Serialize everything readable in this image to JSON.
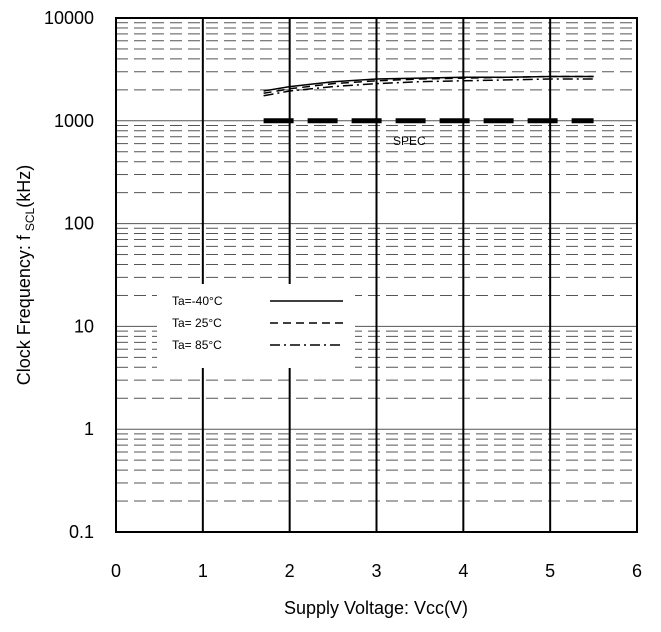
{
  "chart_data": {
    "type": "line",
    "title": "",
    "xlabel": "Supply Voltage: Vcc(V)",
    "ylabel": "Clock Frequency: f",
    "ylabel_sub": "SCL",
    "ylabel_unit": "(kHz)",
    "xlim": [
      0,
      6
    ],
    "ylim": [
      0.1,
      10000
    ],
    "yscale": "log",
    "grid": true,
    "x_ticks": [
      "0",
      "1",
      "2",
      "3",
      "4",
      "5",
      "6"
    ],
    "y_ticks": [
      "0.1",
      "1",
      "10",
      "100",
      "1000",
      "10000"
    ],
    "legend_position": "center-left",
    "series": [
      {
        "name": "Ta=-40°C",
        "style": "solid",
        "x": [
          1.7,
          2.0,
          2.5,
          3.0,
          3.5,
          4.0,
          4.5,
          5.0,
          5.5
        ],
        "y": [
          1950,
          2150,
          2400,
          2550,
          2600,
          2650,
          2650,
          2700,
          2700
        ]
      },
      {
        "name": "Ta= 25°C",
        "style": "dashed",
        "x": [
          1.7,
          2.0,
          2.5,
          3.0,
          3.5,
          4.0,
          4.5,
          5.0,
          5.5
        ],
        "y": [
          1850,
          2050,
          2300,
          2450,
          2550,
          2600,
          2650,
          2700,
          2700
        ]
      },
      {
        "name": "Ta= 85°C",
        "style": "dashdot",
        "x": [
          1.7,
          2.0,
          2.5,
          3.0,
          3.5,
          4.0,
          4.5,
          5.0,
          5.5
        ],
        "y": [
          1750,
          1950,
          2150,
          2300,
          2400,
          2450,
          2500,
          2550,
          2550
        ]
      }
    ],
    "spec_line": {
      "label": "SPEC",
      "x": [
        1.7,
        5.5
      ],
      "y": 1000
    }
  }
}
